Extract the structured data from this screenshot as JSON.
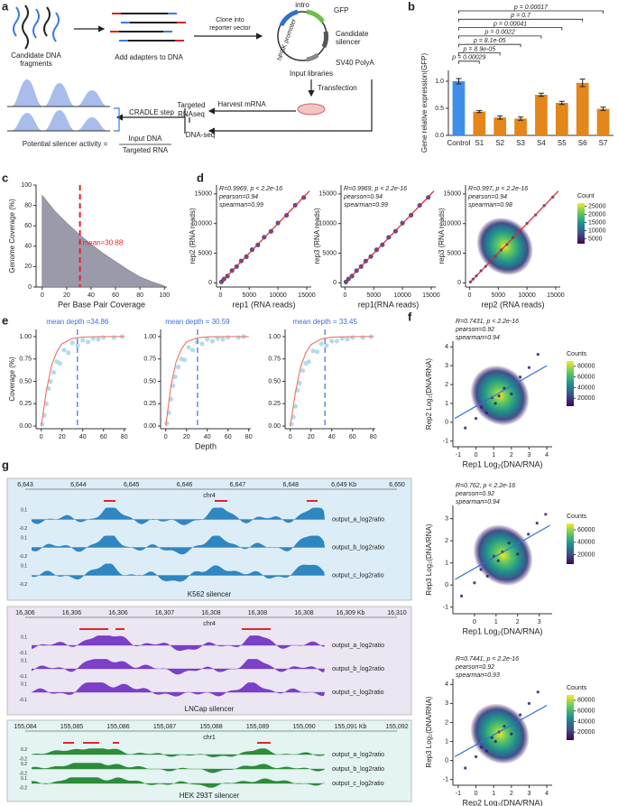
{
  "panel_labels": [
    "a",
    "b",
    "c",
    "d",
    "e",
    "f",
    "g"
  ],
  "diagram": {
    "fragments": [
      "Candidate DNA",
      "fragments"
    ],
    "adapters": "Add adapters to DNA",
    "clone": [
      "Clone into",
      "reporter vector"
    ],
    "intro": "intro",
    "gfp": "GFP",
    "promoter": "hPGK promoter",
    "silencer": [
      "Candidate",
      "silencer"
    ],
    "polya": "SV40 PolyA",
    "input_libraries": "Input libraries",
    "transfection": "Transfection",
    "harvest": "Harvest  mRNA",
    "targeted": [
      "Targeted",
      "RNAseq"
    ],
    "dnaseq": "DNA-seq",
    "cradle": "CRADLE step",
    "activity": "Potential silencer activity =",
    "numerator": "Input DNA",
    "denominator": "Targeted RNA"
  },
  "chart_data": [
    {
      "type": "bar",
      "ylabel": "Gene relative expression(GFP)",
      "categories": [
        "Control",
        "S1",
        "S2",
        "S3",
        "S4",
        "S5",
        "S6",
        "S7"
      ],
      "values": [
        1.0,
        0.44,
        0.33,
        0.31,
        0.75,
        0.6,
        0.97,
        0.49
      ],
      "errors": [
        0.05,
        0.02,
        0.03,
        0.03,
        0.03,
        0.03,
        0.07,
        0.03
      ],
      "colors": [
        "#3f8fe8",
        "#e3871c",
        "#e3871c",
        "#e3871c",
        "#e3871c",
        "#e3871c",
        "#e3871c",
        "#e3871c"
      ],
      "ylim": [
        0,
        1.2
      ],
      "yticks": [
        {
          "value": 0,
          "label": "0.0"
        },
        {
          "value": 0.5,
          "label": "0.5"
        },
        {
          "value": 1,
          "label": "1.0"
        }
      ],
      "annotations": [
        "p = 0.00017",
        "p = 0.7",
        "p = 0.00041",
        "p = 0.0022",
        "p = 8.1e-05",
        "p = 8.9e-05",
        "p = 0.00029"
      ]
    },
    {
      "type": "area",
      "xlabel": "Per Base Pair Coverage",
      "ylabel": "Genome Coverage (%)",
      "color": "#9a9aaa",
      "x": [
        0,
        10,
        20,
        30,
        40,
        50,
        60,
        70,
        80,
        90,
        100
      ],
      "values": [
        90,
        75,
        63,
        52,
        42,
        33,
        25,
        17,
        10,
        5,
        1
      ],
      "xlim": [
        -5,
        102
      ],
      "ylim": [
        0,
        100
      ],
      "xticks": [
        0,
        20,
        40,
        60,
        80,
        100
      ],
      "yticks": [
        0,
        20,
        40,
        60,
        80,
        100
      ],
      "mean": 30.88,
      "mean_label": "mean=30.88",
      "mean_color": "#e0262a"
    },
    {
      "type": "scatter",
      "xlabel": "rep1 (RNA reads)",
      "ylabel": "rep2 (RNA reads)",
      "color": "#2b3a8c",
      "fit_color": "#e0262a",
      "stats": [
        "R=0.9969, p < 2.2e-16",
        "pearson=0.94",
        "spearman=0.99"
      ],
      "x": [
        150,
        600,
        1200,
        2000,
        2800,
        3600,
        4500,
        5500,
        6500,
        7600,
        8800,
        10000,
        11500,
        13000,
        14500
      ],
      "values": [
        170,
        640,
        1150,
        2080,
        2750,
        3700,
        4420,
        5600,
        6400,
        7700,
        8700,
        10100,
        11400,
        13100,
        14400
      ],
      "fit": {
        "x": [
          0,
          15500
        ],
        "values": [
          0,
          15500
        ]
      },
      "xlim": [
        -700,
        15800
      ],
      "ylim": [
        -700,
        16500
      ],
      "xticks": [
        0,
        5000,
        10000,
        15000
      ],
      "yticks": [
        0,
        5000,
        10000,
        15000
      ]
    },
    {
      "type": "scatter",
      "xlabel": "rep1(RNA reads)",
      "ylabel": "rep3 (RNA reads)",
      "color": "#2b3a8c",
      "fit_color": "#e0262a",
      "stats": [
        "R=0.9969, p < 2.2e-16",
        "pearson=0.94",
        "spearman=0.99"
      ],
      "x": [
        150,
        600,
        1200,
        2000,
        2800,
        3600,
        4500,
        5500,
        6500,
        7600,
        8800,
        10000,
        11500,
        13000,
        14500
      ],
      "values": [
        160,
        660,
        1140,
        2060,
        2760,
        3680,
        4450,
        5580,
        6420,
        7680,
        8720,
        10080,
        11420,
        13080,
        14420
      ],
      "fit": {
        "x": [
          0,
          15500
        ],
        "values": [
          0,
          15500
        ]
      },
      "xlim": [
        -700,
        15800
      ],
      "ylim": [
        -700,
        16500
      ],
      "xticks": [
        0,
        5000,
        10000,
        15000
      ],
      "yticks": [
        0,
        5000,
        10000,
        15000
      ]
    },
    {
      "type": "scatter",
      "xlabel": "rep2 (RNA reads)",
      "ylabel": "rep3 (RNA reads)",
      "color": "#2b3a8c",
      "fit_color": "#e0262a",
      "stats": [
        "R=0.997, p < 2.2e-16",
        "pearson=0.94",
        "spearman=0.98"
      ],
      "x": [
        150,
        600,
        1200,
        2000,
        2800,
        3600,
        4500,
        5500,
        6500,
        7600,
        8800,
        10000,
        11500,
        13000,
        14500
      ],
      "values": [
        155,
        630,
        1180,
        2040,
        2790,
        3640,
        4480,
        5540,
        6460,
        7640,
        8760,
        10040,
        11460,
        13040,
        14460
      ],
      "fit": {
        "x": [
          0,
          15500
        ],
        "values": [
          0,
          15500
        ]
      },
      "xlim": [
        -700,
        15800
      ],
      "ylim": [
        -700,
        16500
      ],
      "xticks": [
        0,
        5000,
        10000,
        15000
      ],
      "yticks": [
        0,
        5000,
        10000,
        15000
      ],
      "colorbar": {
        "title": "Count",
        "ticks": [
          5000,
          10000,
          15000,
          20000,
          25000
        ],
        "lim": [
          2000,
          27000
        ]
      }
    },
    {
      "type": "scatter",
      "ylabel": "Coverage (%)",
      "color": "#a6d6e6",
      "fit_color": "#f07a6e",
      "x": [
        1,
        3,
        5,
        7,
        9,
        12,
        15,
        18,
        22,
        26,
        30,
        35,
        40,
        45,
        50,
        55,
        60,
        70,
        78
      ],
      "values": [
        0.02,
        0.12,
        0.25,
        0.42,
        0.5,
        0.6,
        0.72,
        0.7,
        0.85,
        0.82,
        0.93,
        0.9,
        0.96,
        0.94,
        0.98,
        0.97,
        0.99,
        0.99,
        1.0
      ],
      "fit": {
        "x": [
          0,
          5,
          10,
          15,
          20,
          30,
          40,
          60,
          80
        ],
        "values": [
          0,
          0.4,
          0.68,
          0.83,
          0.92,
          0.98,
          0.995,
          1,
          1
        ]
      },
      "mean": 34.86,
      "mean_label": "mean depth =34.86",
      "mean_color": "#3a6ee0",
      "xlim": [
        -5,
        82
      ],
      "ylim": [
        -0.03,
        1.08
      ],
      "xticks": [
        0,
        20,
        40,
        60,
        80
      ],
      "yticks": [
        {
          "value": 0,
          "label": "0.00"
        },
        {
          "value": 0.25,
          "label": "0.25"
        },
        {
          "value": 0.5,
          "label": "0.50"
        },
        {
          "value": 0.75,
          "label": "0.75"
        },
        {
          "value": 1,
          "label": "1.00"
        }
      ]
    },
    {
      "type": "scatter",
      "xlabel": "Depth",
      "color": "#a6d6e6",
      "fit_color": "#f07a6e",
      "x": [
        1,
        3,
        5,
        7,
        9,
        12,
        15,
        18,
        22,
        26,
        30,
        35,
        40,
        45,
        50,
        55,
        60,
        70,
        75
      ],
      "values": [
        0.03,
        0.15,
        0.3,
        0.45,
        0.55,
        0.66,
        0.75,
        0.74,
        0.88,
        0.85,
        0.94,
        0.92,
        0.97,
        0.95,
        0.98,
        0.97,
        0.99,
        0.99,
        1.0
      ],
      "fit": {
        "x": [
          0,
          5,
          10,
          15,
          20,
          30,
          40,
          60,
          80
        ],
        "values": [
          0,
          0.45,
          0.72,
          0.86,
          0.94,
          0.985,
          0.997,
          1,
          1
        ]
      },
      "mean": 30.59,
      "mean_label": "mean depth = 30.59",
      "mean_color": "#3a6ee0",
      "xlim": [
        -5,
        82
      ],
      "ylim": [
        -0.03,
        1.08
      ],
      "xticks": [
        0,
        20,
        40,
        60,
        80
      ],
      "yticks": [
        {
          "value": 0,
          "label": "0.00"
        },
        {
          "value": 0.25,
          "label": "0.25"
        },
        {
          "value": 0.5,
          "label": "0.50"
        },
        {
          "value": 0.75,
          "label": "0.75"
        },
        {
          "value": 1,
          "label": "1.00"
        }
      ]
    },
    {
      "type": "scatter",
      "color": "#a6d6e6",
      "fit_color": "#f07a6e",
      "x": [
        1,
        3,
        5,
        7,
        9,
        12,
        15,
        18,
        22,
        26,
        30,
        35,
        40,
        45,
        50,
        55,
        60,
        70,
        78
      ],
      "values": [
        0.02,
        0.1,
        0.22,
        0.4,
        0.48,
        0.62,
        0.7,
        0.72,
        0.84,
        0.83,
        0.92,
        0.9,
        0.95,
        0.95,
        0.98,
        0.97,
        0.99,
        0.99,
        1.0
      ],
      "fit": {
        "x": [
          0,
          5,
          10,
          15,
          20,
          30,
          40,
          60,
          80
        ],
        "values": [
          0,
          0.38,
          0.66,
          0.82,
          0.91,
          0.975,
          0.993,
          1,
          1
        ]
      },
      "mean": 33.45,
      "mean_label": "mean depth = 33.45",
      "mean_color": "#3a6ee0",
      "xlim": [
        -5,
        82
      ],
      "ylim": [
        -0.03,
        1.08
      ],
      "xticks": [
        0,
        20,
        40,
        60,
        80
      ],
      "yticks": [
        {
          "value": 0,
          "label": "0.00"
        },
        {
          "value": 0.25,
          "label": "0.25"
        },
        {
          "value": 0.5,
          "label": "0.50"
        },
        {
          "value": 0.75,
          "label": "0.75"
        },
        {
          "value": 1,
          "label": "1.00"
        }
      ]
    },
    {
      "type": "scatter",
      "xlabel": "Rep1 Log₂(DNA/RNA)",
      "ylabel": "Rep2 Log₂(DNA/RNA)",
      "color": "#3b1a6e",
      "fit_color": "#2e6fd8",
      "stats": [
        "R=0.7431, p < 2.2e-16",
        "pearson=0.92",
        "spearman=0.94"
      ],
      "x": [
        -0.6,
        0,
        0.3,
        0.6,
        0.9,
        1.1,
        1.3,
        1.6,
        2,
        2.5,
        3,
        3.5
      ],
      "values": [
        -0.3,
        0.2,
        0.8,
        0.5,
        1.3,
        1.0,
        1.4,
        1.8,
        1.5,
        2.4,
        2.9,
        3.6
      ],
      "fit": {
        "x": [
          -1.2,
          4
        ],
        "values": [
          0.2,
          3.0
        ]
      },
      "xlim": [
        -1.3,
        4.3
      ],
      "ylim": [
        -1.3,
        4.3
      ],
      "xticks": [
        -1,
        0,
        1,
        2,
        3,
        4
      ],
      "yticks": [
        -1,
        0,
        1,
        2,
        3,
        4
      ],
      "colorbar": {
        "title": "Counts",
        "ticks": [
          20000,
          40000,
          60000,
          80000
        ],
        "lim": [
          5000,
          90000
        ]
      }
    },
    {
      "type": "scatter",
      "xlabel": "Rep1 Log₂(DNA/RNA)",
      "ylabel": "Rep3 Log₂(DNA/RNA)",
      "color": "#3b1a6e",
      "fit_color": "#2e6fd8",
      "stats": [
        "R=0.762, p < 2.2e-16",
        "pearson=0.92",
        "spearman=0.94"
      ],
      "x": [
        -0.6,
        0,
        0.3,
        0.6,
        0.9,
        1.1,
        1.3,
        1.6,
        2,
        2.5,
        2.9,
        3.3
      ],
      "values": [
        -0.5,
        0.1,
        0.7,
        0.4,
        1.3,
        1.1,
        1.5,
        1.9,
        1.4,
        2.3,
        2.8,
        3.2
      ],
      "fit": {
        "x": [
          -0.9,
          3.5
        ],
        "values": [
          0.25,
          2.7
        ]
      },
      "xlim": [
        -1,
        3.6
      ],
      "ylim": [
        -1.3,
        3.6
      ],
      "xticks": [
        0,
        1,
        2,
        3
      ],
      "yticks": [
        -1,
        0,
        1,
        2,
        3
      ],
      "colorbar": {
        "title": "Counts",
        "ticks": [
          20000,
          40000,
          60000
        ],
        "lim": [
          5000,
          70000
        ]
      }
    },
    {
      "type": "scatter",
      "xlabel": "Rep2 Log₂(DNA/RNA)",
      "ylabel": "Rep3 Log₂(DNA/RNA)",
      "color": "#3b1a6e",
      "fit_color": "#2e6fd8",
      "stats": [
        "R=0.7441, p < 2.2e-16",
        "pearson=0.92",
        "spearman=0.93"
      ],
      "x": [
        -0.6,
        0,
        0.3,
        0.6,
        0.9,
        1.1,
        1.3,
        1.6,
        2,
        2.5,
        3,
        3.5
      ],
      "values": [
        -0.4,
        0.2,
        0.7,
        0.5,
        1.2,
        1.0,
        1.5,
        1.8,
        1.4,
        2.4,
        3.0,
        3.6
      ],
      "fit": {
        "x": [
          -1.2,
          4
        ],
        "values": [
          0.2,
          2.9
        ]
      },
      "xlim": [
        -1.3,
        4.3
      ],
      "ylim": [
        -1.3,
        4.3
      ],
      "xticks": [
        -1,
        0,
        1,
        2,
        3,
        4
      ],
      "yticks": [
        -1,
        0,
        1,
        2,
        3,
        4
      ],
      "colorbar": {
        "title": "Counts",
        "ticks": [
          20000,
          40000,
          60000,
          80000
        ],
        "lim": [
          5000,
          90000
        ]
      }
    }
  ],
  "genome_tracks": [
    {
      "coordinates": [
        "6,643",
        "6,644",
        "6,645",
        "6,646",
        "6,647",
        "6,648",
        "6,649 Kb",
        "6,650"
      ],
      "chromosome": "chr4",
      "rows": [
        {
          "name": "output_a_log2ratio",
          "ticks": [
            "0.1",
            "-0.2"
          ]
        },
        {
          "name": "output_b_log2ratio",
          "ticks": [
            "0.1",
            "-0.2"
          ]
        },
        {
          "name": "output_c_log2ratio",
          "ticks": [
            "0.1",
            "-0.2"
          ]
        }
      ],
      "title": "K562 silencer"
    },
    {
      "coordinates": [
        "16,306",
        "16,306",
        "16,306",
        "16,307",
        "16,308",
        "16,308",
        "16,308",
        "16,309 Kb",
        "16,310"
      ],
      "chromosome": "chr4",
      "rows": [
        {
          "name": "output_a_log2ratio",
          "ticks": [
            "0.1",
            "-0.1"
          ]
        },
        {
          "name": "output_b_log2ratio",
          "ticks": [
            "0.1",
            "-0.1"
          ]
        },
        {
          "name": "output_c_log2ratio",
          "ticks": [
            "0.1",
            "-0.1"
          ]
        }
      ],
      "title": "LNCap silencer"
    },
    {
      "coordinates": [
        "155,084",
        "155,085",
        "155,086",
        "155,087",
        "155,088",
        "155,089",
        "155,090",
        "155,091 Kb",
        "155,092"
      ],
      "chromosome": "chr1",
      "rows": [
        {
          "name": "output_a_log2ratio",
          "ticks": [
            "0.2",
            "-0.2"
          ]
        },
        {
          "name": "output_b_log2ratio",
          "ticks": [
            "0.2",
            "-0.2"
          ]
        },
        {
          "name": "output_c_log2ratio",
          "ticks": [
            "0.1",
            "-0.2"
          ]
        }
      ],
      "title": "HEK 293T silencer"
    }
  ]
}
